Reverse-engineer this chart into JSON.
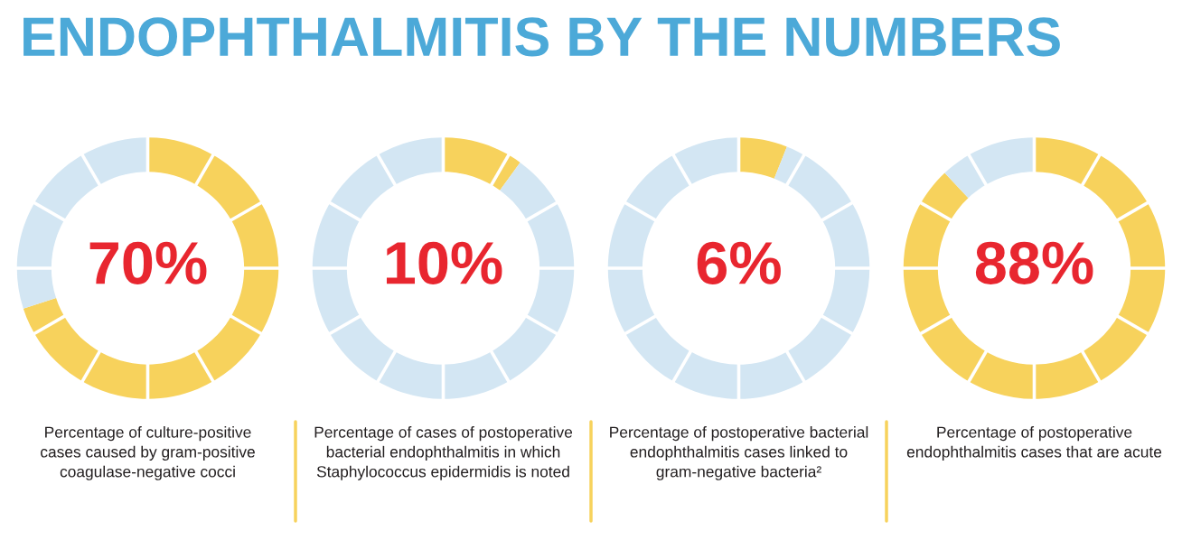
{
  "chart_data": [
    {
      "type": "donut",
      "title": "ENDOPHTHALMITIS BY THE NUMBERS",
      "categories": [
        null,
        null
      ],
      "values": [
        70,
        30
      ],
      "colors": [
        "#f7d25c",
        "#d3e6f3"
      ],
      "annotations": [
        "70%"
      ],
      "xlabel": "Percentage of culture-positive\ncases caused by gram-positive\ncoagulase-negative cocci"
    },
    {
      "type": "donut",
      "categories": [
        null,
        null
      ],
      "values": [
        10,
        90
      ],
      "colors": [
        "#f7d25c",
        "#d3e6f3"
      ],
      "annotations": [
        "10%"
      ],
      "xlabel": "Percentage of cases of postoperative\nbacterial endophthalmitis in which\nStaphylococcus epidermidis is noted"
    },
    {
      "type": "donut",
      "categories": [
        null,
        null
      ],
      "values": [
        6,
        94
      ],
      "colors": [
        "#f7d25c",
        "#d3e6f3"
      ],
      "annotations": [
        "6%"
      ],
      "xlabel": "Percentage of postoperative bacterial\nendophthalmitis cases linked to\ngram-negative bacteria²"
    },
    {
      "type": "donut",
      "categories": [
        null,
        null
      ],
      "values": [
        88,
        12
      ],
      "colors": [
        "#f7d25c",
        "#d3e6f3"
      ],
      "annotations": [
        "88%"
      ],
      "xlabel": "Percentage of postoperative\nendophthalmitis cases that are acute"
    }
  ]
}
